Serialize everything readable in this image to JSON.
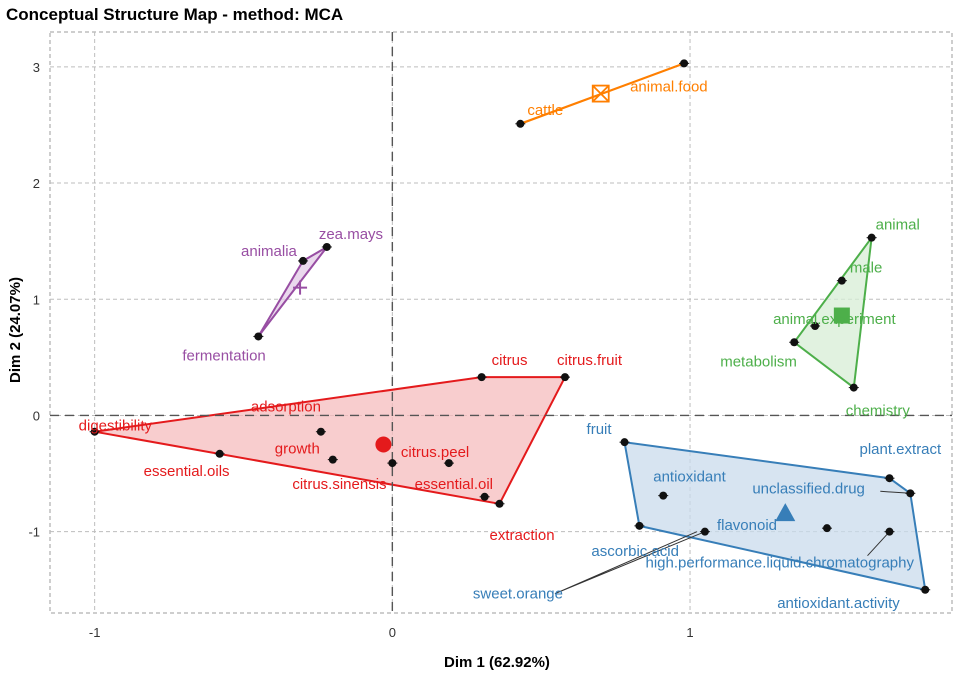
{
  "chart_data": {
    "type": "scatter",
    "title": "Conceptual Structure Map - method: MCA",
    "xlabel": "Dim 1 (62.92%)",
    "ylabel": "Dim 2 (24.07%)",
    "xlim": [
      -1.15,
      1.88
    ],
    "ylim": [
      -1.7,
      3.3
    ],
    "xticks": [
      -1,
      0,
      1
    ],
    "yticks": [
      -1,
      0,
      1,
      2,
      3
    ],
    "grid": true,
    "clusters": [
      {
        "name": "cluster-1",
        "color": "#E41A1C",
        "fill": "#F6BCBE",
        "centroid_shape": "circle",
        "centroid": [
          -0.03,
          -0.25
        ],
        "hull": [
          [
            -1.0,
            -0.14
          ],
          [
            0.3,
            0.33
          ],
          [
            0.58,
            0.33
          ],
          [
            0.36,
            -0.76
          ]
        ],
        "points": [
          {
            "label": "digestibility",
            "x": -1.0,
            "y": -0.14
          },
          {
            "label": "essential.oils",
            "x": -0.58,
            "y": -0.33
          },
          {
            "label": "adsorption",
            "x": -0.24,
            "y": -0.14
          },
          {
            "label": "growth",
            "x": -0.2,
            "y": -0.38
          },
          {
            "label": "citrus.sinensis",
            "x": 0.0,
            "y": -0.41
          },
          {
            "label": "citrus.peel",
            "x": 0.19,
            "y": -0.41
          },
          {
            "label": "citrus",
            "x": 0.3,
            "y": 0.33
          },
          {
            "label": "citrus.fruit",
            "x": 0.58,
            "y": 0.33
          },
          {
            "label": "essential.oil",
            "x": 0.31,
            "y": -0.7
          },
          {
            "label": "extraction",
            "x": 0.36,
            "y": -0.76
          }
        ]
      },
      {
        "name": "cluster-2",
        "color": "#377EB8",
        "fill": "#C9DBEC",
        "centroid_shape": "triangle",
        "centroid": [
          1.32,
          -0.84
        ],
        "hull": [
          [
            0.78,
            -0.23
          ],
          [
            1.67,
            -0.54
          ],
          [
            1.74,
            -0.67
          ],
          [
            1.79,
            -1.5
          ],
          [
            0.83,
            -0.95
          ]
        ],
        "points": [
          {
            "label": "fruit",
            "x": 0.78,
            "y": -0.23
          },
          {
            "label": "antioxidant",
            "x": 0.91,
            "y": -0.69
          },
          {
            "label": "unclassified.drug",
            "x": 1.74,
            "y": -0.67
          },
          {
            "label": "plant.extract",
            "x": 1.67,
            "y": -0.54
          },
          {
            "label": "flavonoid",
            "x": 1.46,
            "y": -0.97
          },
          {
            "label": "ascorbic.acid",
            "x": 0.83,
            "y": -0.95
          },
          {
            "label": "sweet.orange",
            "x": 1.05,
            "y": -1.0
          },
          {
            "label": "high.performance.liquid.chromatography",
            "x": 1.67,
            "y": -1.0
          },
          {
            "label": "antioxidant.activity",
            "x": 1.79,
            "y": -1.5
          }
        ]
      },
      {
        "name": "cluster-3",
        "color": "#4DAF4A",
        "fill": "#D7EDD5",
        "centroid_shape": "square",
        "centroid": [
          1.51,
          0.86
        ],
        "hull": [
          [
            1.61,
            1.53
          ],
          [
            1.55,
            0.24
          ],
          [
            1.35,
            0.63
          ]
        ],
        "points": [
          {
            "label": "animal",
            "x": 1.61,
            "y": 1.53
          },
          {
            "label": "male",
            "x": 1.51,
            "y": 1.16
          },
          {
            "label": "animal.experiment",
            "x": 1.42,
            "y": 0.77
          },
          {
            "label": "metabolism",
            "x": 1.35,
            "y": 0.63
          },
          {
            "label": "chemistry",
            "x": 1.55,
            "y": 0.24
          }
        ]
      },
      {
        "name": "cluster-4",
        "color": "#984EA3",
        "fill": "#E3CBE7",
        "centroid_shape": "cross",
        "centroid": [
          -0.31,
          1.1
        ],
        "hull": [
          [
            -0.45,
            0.68
          ],
          [
            -0.3,
            1.33
          ],
          [
            -0.22,
            1.45
          ]
        ],
        "points": [
          {
            "label": "zea.mays",
            "x": -0.22,
            "y": 1.45
          },
          {
            "label": "animalia",
            "x": -0.3,
            "y": 1.33
          },
          {
            "label": "fermentation",
            "x": -0.45,
            "y": 0.68
          }
        ]
      },
      {
        "name": "cluster-5",
        "color": "#FF7F00",
        "fill": "#FFD9B3",
        "centroid_shape": "boxed-cross",
        "centroid": [
          0.7,
          2.77
        ],
        "hull": [
          [
            0.43,
            2.51
          ],
          [
            0.98,
            3.03
          ]
        ],
        "points": [
          {
            "label": "cattle",
            "x": 0.43,
            "y": 2.51
          },
          {
            "label": "animal.food",
            "x": 0.98,
            "y": 3.03
          }
        ]
      }
    ]
  }
}
